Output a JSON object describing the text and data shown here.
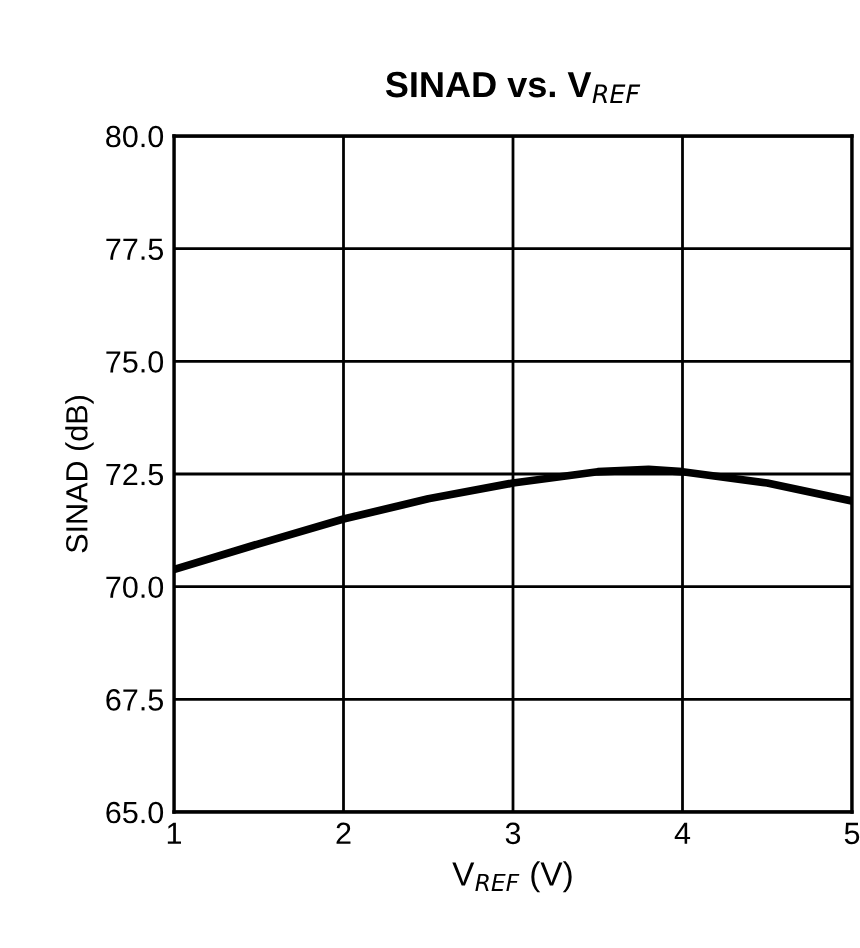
{
  "chart_data": {
    "type": "line",
    "title": "SINAD vs. V$_{REF}$",
    "xlabel": "V$_{REF}$ (V)",
    "ylabel": "SINAD (dB)",
    "x": [
      1,
      1.5,
      2,
      2.5,
      3,
      3.5,
      3.8,
      4,
      4.5,
      5
    ],
    "series": [
      {
        "color": "#000000",
        "values": [
          70.38,
          70.95,
          71.5,
          71.95,
          72.3,
          72.55,
          72.6,
          72.55,
          72.3,
          71.9
        ]
      }
    ],
    "xlim": [
      1,
      5
    ],
    "ylim": [
      65,
      80
    ],
    "xticks": [
      1,
      2,
      3,
      4,
      5
    ],
    "yticks": [
      {
        "value": 65,
        "label": "65.0"
      },
      {
        "value": 67.5,
        "label": "67.5"
      },
      {
        "value": 70,
        "label": "70.0"
      },
      {
        "value": 72.5,
        "label": "72.5"
      },
      {
        "value": 75,
        "label": "75.0"
      },
      {
        "value": 77.5,
        "label": "77.5"
      },
      {
        "value": 80,
        "label": "80.0"
      }
    ],
    "grid": true,
    "legend": false,
    "marker": "none",
    "line_style": "solid"
  }
}
